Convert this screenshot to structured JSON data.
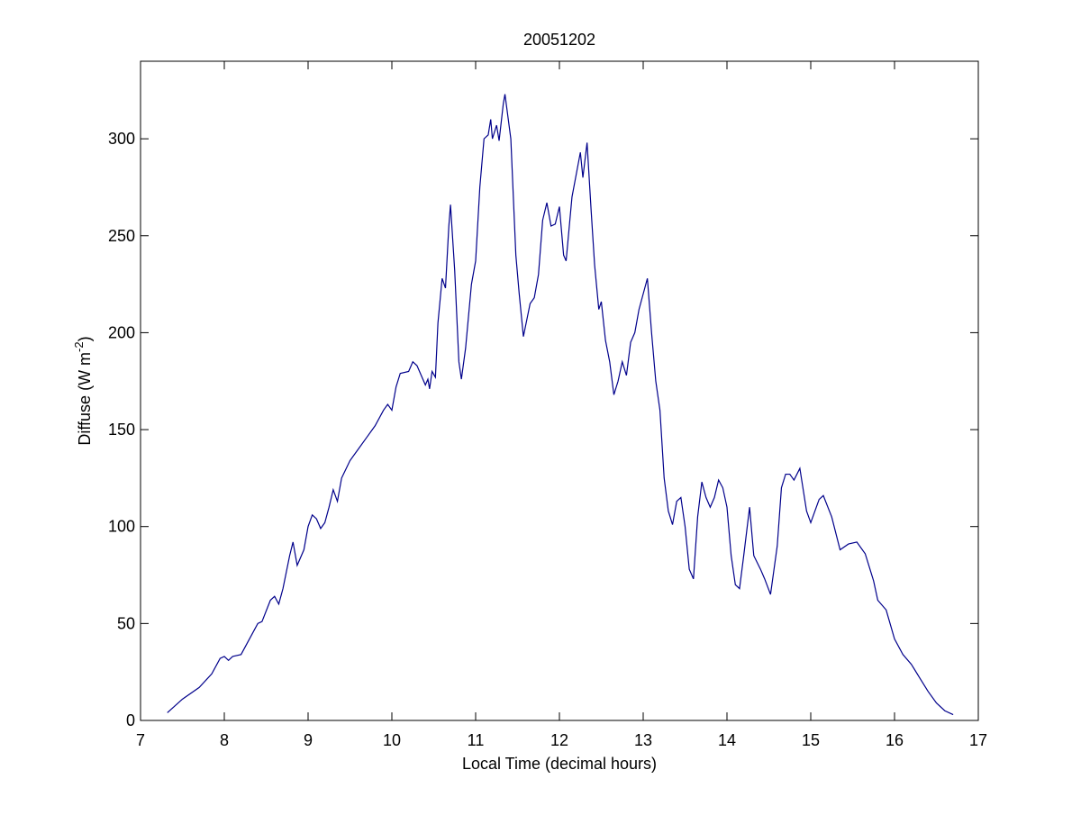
{
  "chart_data": {
    "type": "line",
    "title": "20051202",
    "xlabel": "Local Time (decimal hours)",
    "ylabel": [
      "Diffuse (W m",
      "-2",
      ")"
    ],
    "color": "#00008b",
    "xlim": [
      7,
      17
    ],
    "xticks": [
      7,
      8,
      9,
      10,
      11,
      12,
      13,
      14,
      15,
      16,
      17
    ],
    "ylim": [
      0,
      340
    ],
    "yticks": [
      0,
      50,
      100,
      150,
      200,
      250,
      300
    ],
    "grid": false,
    "x": [
      7.32,
      7.5,
      7.7,
      7.85,
      7.95,
      8.0,
      8.05,
      8.1,
      8.2,
      8.3,
      8.4,
      8.45,
      8.55,
      8.6,
      8.65,
      8.7,
      8.78,
      8.82,
      8.87,
      8.95,
      9.0,
      9.05,
      9.1,
      9.15,
      9.2,
      9.25,
      9.3,
      9.35,
      9.4,
      9.5,
      9.6,
      9.7,
      9.8,
      9.9,
      9.95,
      10.0,
      10.05,
      10.1,
      10.2,
      10.25,
      10.3,
      10.35,
      10.4,
      10.43,
      10.45,
      10.48,
      10.52,
      10.55,
      10.6,
      10.64,
      10.68,
      10.7,
      10.75,
      10.8,
      10.83,
      10.88,
      10.95,
      11.0,
      11.05,
      11.1,
      11.15,
      11.18,
      11.2,
      11.25,
      11.28,
      11.33,
      11.35,
      11.42,
      11.48,
      11.52,
      11.57,
      11.65,
      11.7,
      11.75,
      11.8,
      11.85,
      11.9,
      11.95,
      12.0,
      12.05,
      12.08,
      12.15,
      12.25,
      12.28,
      12.33,
      12.38,
      12.42,
      12.47,
      12.5,
      12.55,
      12.6,
      12.65,
      12.7,
      12.75,
      12.8,
      12.85,
      12.9,
      12.95,
      13.0,
      13.05,
      13.1,
      13.15,
      13.2,
      13.25,
      13.3,
      13.35,
      13.4,
      13.45,
      13.5,
      13.55,
      13.6,
      13.65,
      13.7,
      13.75,
      13.8,
      13.85,
      13.9,
      13.95,
      14.0,
      14.05,
      14.1,
      14.15,
      14.2,
      14.27,
      14.32,
      14.4,
      14.45,
      14.52,
      14.6,
      14.65,
      14.7,
      14.75,
      14.8,
      14.87,
      14.95,
      15.0,
      15.05,
      15.1,
      15.15,
      15.25,
      15.35,
      15.45,
      15.55,
      15.65,
      15.75,
      15.8,
      15.9,
      16.0,
      16.1,
      16.2,
      16.3,
      16.4,
      16.5,
      16.6,
      16.7
    ],
    "values": [
      4,
      11,
      17,
      24,
      32,
      33,
      31,
      33,
      34,
      42,
      50,
      51,
      62,
      64,
      60,
      68,
      85,
      92,
      80,
      88,
      100,
      106,
      104,
      99,
      102,
      110,
      119,
      113,
      125,
      134,
      140,
      146,
      152,
      160,
      163,
      160,
      172,
      179,
      180,
      185,
      183,
      178,
      173,
      176,
      171,
      180,
      177,
      205,
      228,
      223,
      255,
      266,
      232,
      185,
      176,
      192,
      225,
      237,
      275,
      300,
      302,
      310,
      300,
      307,
      299,
      318,
      323,
      300,
      240,
      220,
      198,
      215,
      218,
      230,
      258,
      267,
      255,
      256,
      265,
      240,
      237,
      270,
      293,
      280,
      298,
      262,
      235,
      212,
      216,
      196,
      185,
      168,
      175,
      185,
      178,
      195,
      200,
      212,
      220,
      228,
      200,
      175,
      160,
      125,
      108,
      101,
      113,
      115,
      100,
      78,
      73,
      105,
      123,
      115,
      110,
      115,
      124,
      120,
      110,
      85,
      70,
      68,
      85,
      110,
      85,
      78,
      73,
      65,
      90,
      120,
      127,
      127,
      124,
      130,
      108,
      102,
      108,
      114,
      116,
      105,
      88,
      91,
      92,
      86,
      72,
      62,
      57,
      42,
      34,
      29,
      22,
      15,
      9,
      5,
      3
    ]
  }
}
